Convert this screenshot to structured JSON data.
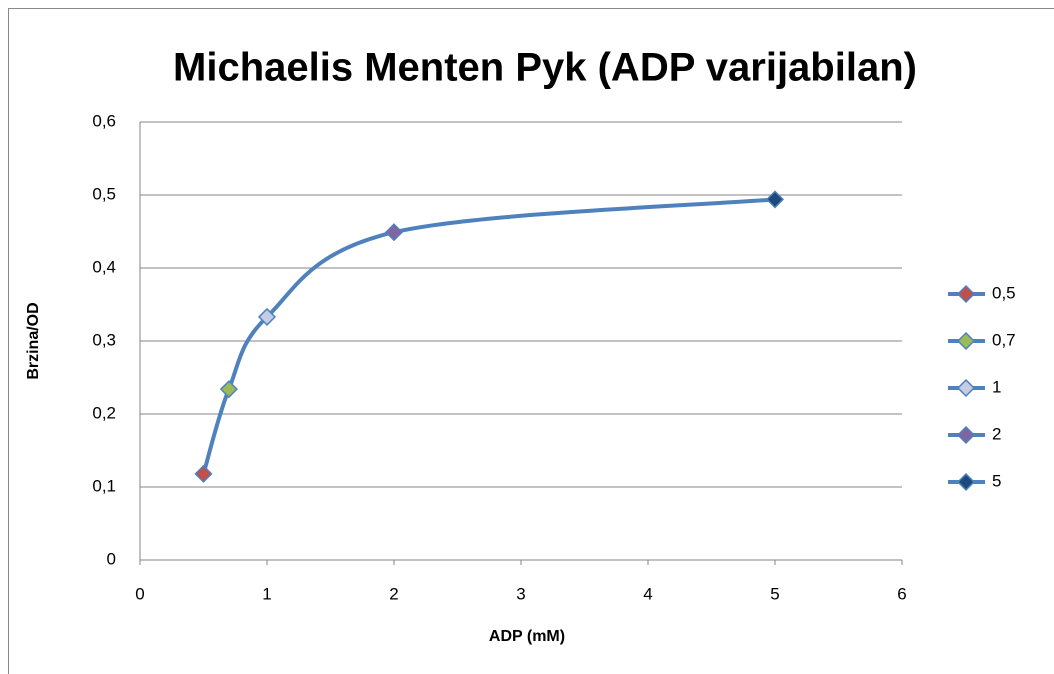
{
  "chart_data": {
    "type": "scatter",
    "title": "Michaelis Menten Pyk (ADP varijabilan)",
    "x_label": "ADP (mM)",
    "y_label": "Brzina/OD",
    "x": [
      0.5,
      0.7,
      1,
      2,
      5
    ],
    "values": [
      0.118,
      0.234,
      0.333,
      0.449,
      0.494
    ],
    "point_labels": [
      "0,5",
      "0,7",
      "1",
      "2",
      "5"
    ],
    "point_colors": [
      "#c0504d",
      "#9bbb59",
      "#c6cbe6",
      "#8064a2",
      "#1f497d"
    ],
    "line_color": "#4f81bd",
    "smooth": true,
    "xlim": [
      0,
      6
    ],
    "xticks": [
      0,
      1,
      2,
      3,
      4,
      5,
      6
    ],
    "ylim": [
      0,
      0.6
    ],
    "yticks": [
      0,
      {
        "value": 0.1,
        "label": "0,1"
      },
      {
        "value": 0.2,
        "label": "0,2"
      },
      {
        "value": 0.3,
        "label": "0,3"
      },
      {
        "value": 0.4,
        "label": "0,4"
      },
      {
        "value": 0.5,
        "label": "0,5"
      },
      {
        "value": 0.6,
        "label": "0,6"
      }
    ],
    "grid": true,
    "legend": "right"
  }
}
